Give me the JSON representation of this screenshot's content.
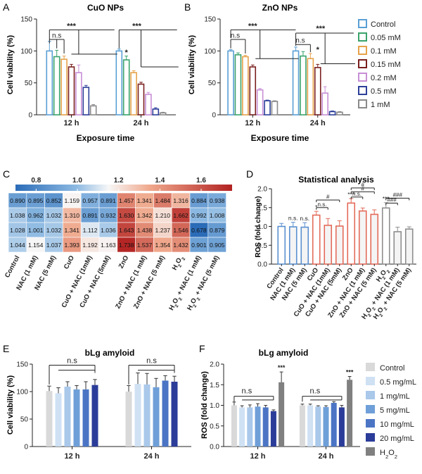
{
  "colors": {
    "control": "#5a9fd4",
    "c005": "#3aa36b",
    "c01": "#e6a24a",
    "c015": "#7a1f1f",
    "c02": "#c78fd6",
    "c05": "#2c3f9a",
    "c1": "#8a8a8a",
    "statA": "#5a8fcf",
    "statB": "#e36b5a",
    "statC": "#8e8e8e",
    "bl0": "#d9d9d9",
    "bl1": "#cfe1f3",
    "bl2": "#a9c8ea",
    "bl3": "#6f9fd8",
    "bl4": "#4b75c4",
    "bl5": "#2b3c99",
    "bl6": "#808080"
  },
  "chart_data": [
    {
      "panel": "A",
      "type": "bar",
      "title": "CuO NPs",
      "xlabel": "Exposure time",
      "ylabel": "Cell viability (%)",
      "ylim": [
        0,
        150
      ],
      "yticks": [
        "0",
        "50",
        "100",
        "150"
      ],
      "categories": [
        "12 h",
        "24 h"
      ],
      "series": [
        {
          "name": "Control",
          "values": [
            100,
            100
          ],
          "err": [
            15,
            3
          ]
        },
        {
          "name": "0.05 mM",
          "values": [
            91,
            86
          ],
          "err": [
            10,
            6
          ]
        },
        {
          "name": "0.1 mM",
          "values": [
            87,
            66
          ],
          "err": [
            5,
            3
          ]
        },
        {
          "name": "0.15 mM",
          "values": [
            75,
            48
          ],
          "err": [
            4,
            3
          ]
        },
        {
          "name": "0.2 mM",
          "values": [
            66,
            32
          ],
          "err": [
            12,
            3
          ]
        },
        {
          "name": "0.5 mM",
          "values": [
            43,
            9
          ],
          "err": [
            3,
            2
          ]
        },
        {
          "name": "1 mM",
          "values": [
            14,
            3
          ],
          "err": [
            2,
            1
          ]
        }
      ],
      "annotations": [
        "n.s",
        "***",
        "***",
        "*"
      ]
    },
    {
      "panel": "B",
      "type": "bar",
      "title": "ZnO NPs",
      "xlabel": "Exposure time",
      "ylabel": "Cell viability (%)",
      "ylim": [
        0,
        150
      ],
      "yticks": [
        "0",
        "50",
        "100",
        "150"
      ],
      "categories": [
        "12 h",
        "24 h"
      ],
      "series": [
        {
          "name": "Control",
          "values": [
            100,
            100
          ],
          "err": [
            2,
            6
          ]
        },
        {
          "name": "0.05 mM",
          "values": [
            94,
            92
          ],
          "err": [
            3,
            7
          ]
        },
        {
          "name": "0.1 mM",
          "values": [
            91,
            88
          ],
          "err": [
            2,
            8
          ]
        },
        {
          "name": "0.15 mM",
          "values": [
            75,
            74
          ],
          "err": [
            3,
            5
          ]
        },
        {
          "name": "0.2 mM",
          "values": [
            39,
            34
          ],
          "err": [
            2,
            10
          ]
        },
        {
          "name": "0.5 mM",
          "values": [
            22,
            5
          ],
          "err": [
            1,
            1
          ]
        },
        {
          "name": "1 mM",
          "values": [
            21,
            4
          ],
          "err": [
            1,
            1
          ]
        }
      ],
      "annotations": [
        "n.s",
        "***",
        "n.s",
        "***",
        "*"
      ]
    },
    {
      "panel": "C",
      "type": "heatmap",
      "scale_ticks": [
        "0.8",
        "1.0",
        "1.2",
        "1.4",
        "1.6"
      ],
      "scale_range": [
        0.7,
        1.75
      ],
      "columns": [
        "Control",
        "NAC (1 mM)",
        "NAC (5 mM)",
        "CuO",
        "CuO + NAC (1mM)",
        "CuO + NAC (5mM)",
        "ZnO",
        "ZnO + NAC (1 mM)",
        "ZnO + NAC (5 mM)",
        "H2O2",
        "H2O2 + NAC (1 mM)",
        "H2O2 + NAC (5 mM)"
      ],
      "rows": [
        [
          "0.890",
          "0.895",
          "0.852",
          "1.159",
          "0.957",
          "0.891",
          "1.457",
          "1.341",
          "1.484",
          "1.316",
          "0.884",
          "0.938"
        ],
        [
          "1.038",
          "0.962",
          "1.032",
          "1.310",
          "0.891",
          "0.932",
          "1.630",
          "1.342",
          "1.210",
          "1.662",
          "0.992",
          "1.008"
        ],
        [
          "1.028",
          "1.001",
          "1.032",
          "1.341",
          "1.112",
          "1.036",
          "1.643",
          "1.438",
          "1.237",
          "1.546",
          "0.678",
          "0.879"
        ],
        [
          "1.044",
          "1.154",
          "1.037",
          "1.393",
          "1.192",
          "1.163",
          "1.738",
          "1.537",
          "1.354",
          "1.432",
          "0.901",
          "0.905"
        ]
      ]
    },
    {
      "panel": "D",
      "type": "bar",
      "title": "Statistical analysis",
      "ylabel": "ROS (fold change)",
      "ylim": [
        0,
        2.0
      ],
      "yticks": [
        "0.0",
        "0.5",
        "1.0",
        "1.5",
        "2.0"
      ],
      "categories": [
        "Control",
        "NAC (1 mM)",
        "NAC (5 mM)",
        "CuO",
        "CuO + NAC (1mM)",
        "CuO + NAC (5mM)",
        "ZnO",
        "ZnO + NAC (1 mM)",
        "ZnO + NAC (5 mM)",
        "H2O2",
        "H2O2 + NAC (1 mM)",
        "H2O2 + NAC (5 mM)"
      ],
      "values": [
        1.0,
        0.99,
        0.98,
        1.3,
        1.03,
        1.01,
        1.62,
        1.41,
        1.32,
        1.49,
        0.86,
        0.93
      ],
      "err": [
        0.08,
        0.12,
        0.12,
        0.1,
        0.18,
        0.14,
        0.12,
        0.08,
        0.12,
        0.14,
        0.12,
        0.06
      ],
      "bar_labels": [
        "",
        "n.s.",
        "n.s.",
        "*",
        "",
        "",
        "***",
        "",
        "",
        "***",
        "",
        ""
      ],
      "annotations": [
        "#",
        "n.s.",
        "#",
        "n.s.",
        "#",
        "###",
        "###"
      ]
    },
    {
      "panel": "E",
      "type": "bar",
      "title": "bLg amyloid",
      "ylabel": "Cell viability (%)",
      "ylim": [
        0,
        150
      ],
      "yticks": [
        "0",
        "50",
        "100",
        "150"
      ],
      "categories": [
        "12 h",
        "24 h"
      ],
      "series": [
        {
          "name": "Control",
          "values": [
            101,
            100
          ],
          "err": [
            9,
            11
          ]
        },
        {
          "name": "0.5 mg/mL",
          "values": [
            97,
            114
          ],
          "err": [
            10,
            20
          ]
        },
        {
          "name": "1 mg/mL",
          "values": [
            109,
            113
          ],
          "err": [
            9,
            20
          ]
        },
        {
          "name": "5 mg/mL",
          "values": [
            104,
            108
          ],
          "err": [
            7,
            16
          ]
        },
        {
          "name": "10 mg/mL",
          "values": [
            104,
            120
          ],
          "err": [
            14,
            9
          ]
        },
        {
          "name": "20 mg/mL",
          "values": [
            112,
            118
          ],
          "err": [
            10,
            10
          ]
        }
      ],
      "annotations": [
        "n.s",
        "n.s"
      ]
    },
    {
      "panel": "F",
      "type": "bar",
      "title": "bLg amyloid",
      "ylabel": "ROS (fold change)",
      "ylim": [
        0,
        2.0
      ],
      "yticks": [
        "0.0",
        "0.5",
        "1.0",
        "1.5",
        "2.0"
      ],
      "categories": [
        "12 h",
        "24 h"
      ],
      "series": [
        {
          "name": "Control",
          "values": [
            1.0,
            1.0
          ],
          "err": [
            0.08,
            0.03
          ]
        },
        {
          "name": "0.5 mg/mL",
          "values": [
            0.95,
            1.0
          ],
          "err": [
            0.04,
            0.03
          ]
        },
        {
          "name": "1 mg/mL",
          "values": [
            0.95,
            0.97
          ],
          "err": [
            0.06,
            0.02
          ]
        },
        {
          "name": "5 mg/mL",
          "values": [
            0.97,
            0.96
          ],
          "err": [
            0.07,
            0.03
          ]
        },
        {
          "name": "10 mg/mL",
          "values": [
            0.95,
            1.06
          ],
          "err": [
            0.05,
            0.03
          ]
        },
        {
          "name": "20 mg/mL",
          "values": [
            0.86,
            0.95
          ],
          "err": [
            0.03,
            0.05
          ]
        },
        {
          "name": "H2O2",
          "values": [
            1.56,
            1.62
          ],
          "err": [
            0.25,
            0.08
          ]
        }
      ],
      "bar_labels": [
        "***",
        "***"
      ],
      "annotations": [
        "n.s",
        "n.s"
      ]
    }
  ],
  "labels": {
    "A": "A",
    "B": "B",
    "C": "C",
    "D": "D",
    "E": "E",
    "F": "F",
    "exp_time": "Exposure time",
    "xticks_h": [
      "12 h",
      "24 h"
    ],
    "legend_top": [
      "Control",
      "0.05 mM",
      "0.1 mM",
      "0.15 mM",
      "0.2 mM",
      "0.5 mM",
      "1 mM"
    ],
    "legend_bottom": [
      "Control",
      "0.5 mg/mL",
      "1 mg/mL",
      "5 mg/mL",
      "10 mg/mL",
      "20 mg/mL",
      "H2O2"
    ]
  }
}
